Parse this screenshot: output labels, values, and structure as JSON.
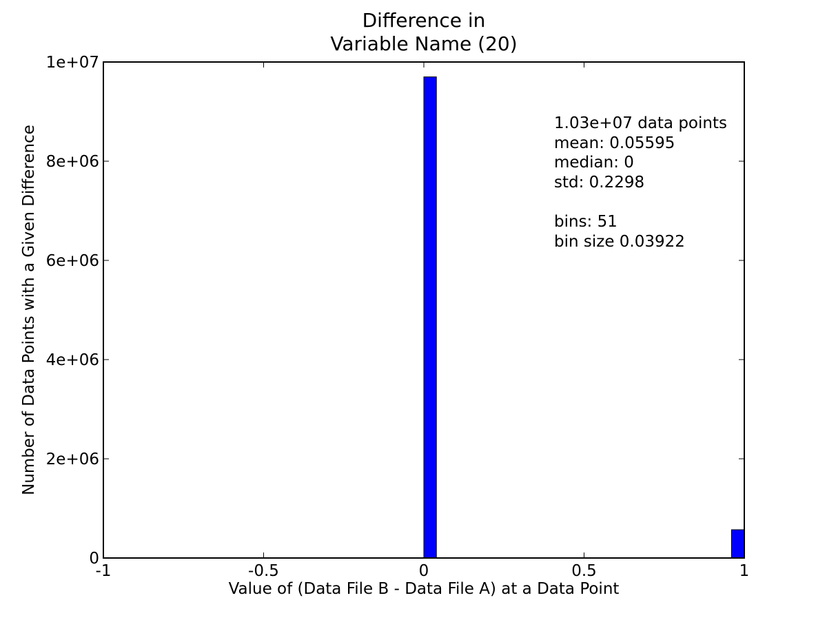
{
  "chart_data": {
    "type": "bar",
    "title_lines": [
      "Difference in",
      "Variable Name (20)"
    ],
    "xlabel": "Value of (Data File B - Data File A) at a Data Point",
    "ylabel": "Number of Data Points with a Given Difference",
    "xlim": [
      -1,
      1
    ],
    "ylim": [
      0,
      10000000
    ],
    "x_ticks": [
      -1,
      -0.5,
      0,
      0.5,
      1
    ],
    "x_tick_labels": [
      "-1",
      "-0.5",
      "0",
      "0.5",
      "1"
    ],
    "y_ticks": [
      0,
      2000000,
      4000000,
      6000000,
      8000000,
      10000000
    ],
    "y_tick_labels": [
      "0",
      "2e+06",
      "4e+06",
      "6e+06",
      "8e+06",
      "1e+07"
    ],
    "bin_width": 0.03922,
    "bars": [
      {
        "x_start": 0.0,
        "value": 9700000
      },
      {
        "x_start": 0.96,
        "value": 570000
      }
    ],
    "bar_color": "#0000ff",
    "grid": false,
    "annotation_lines": [
      "1.03e+07 data points",
      "mean: 0.05595",
      "median: 0",
      "std: 0.2298",
      "",
      "bins: 51",
      "bin size 0.03922"
    ]
  }
}
